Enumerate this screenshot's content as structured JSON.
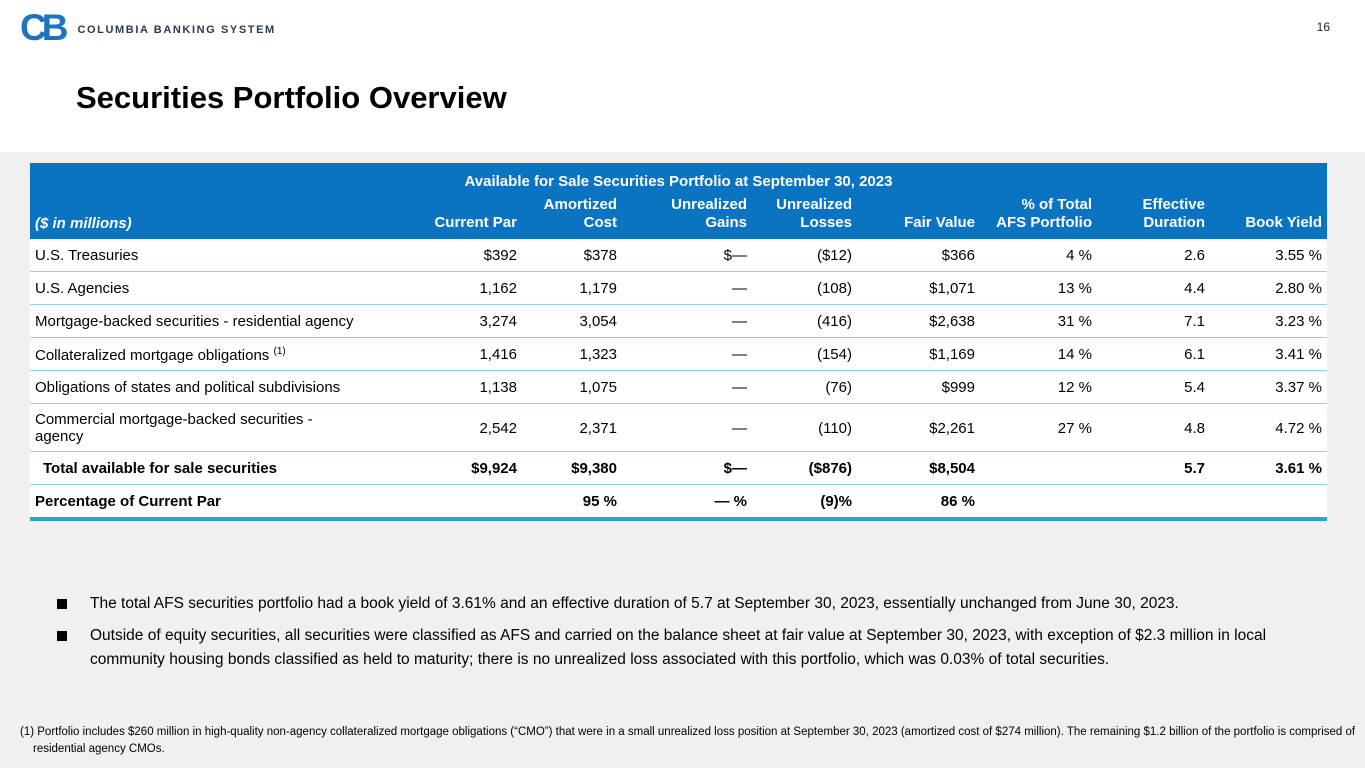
{
  "page": {
    "number": "16"
  },
  "logo": {
    "mark": "CB",
    "wordmark": "COLUMBIA BANKING SYSTEM"
  },
  "title": "Securities Portfolio Overview",
  "table": {
    "caption": "Available for Sale Securities Portfolio at September 30, 2023",
    "units_note": "($ in millions)",
    "columns": [
      "Current Par",
      "Amortized\nCost",
      "Unrealized\nGains",
      "Unrealized\nLosses",
      "Fair Value",
      "% of Total\nAFS Portfolio",
      "Effective\nDuration",
      "Book Yield"
    ],
    "rows": [
      {
        "label": "U.S. Treasuries",
        "cells": [
          "$392",
          "$378",
          "$—",
          "($12)",
          "$366",
          "4 %",
          "2.6",
          "3.55 %"
        ]
      },
      {
        "label": "U.S. Agencies",
        "cells": [
          "1,162",
          "1,179",
          "—",
          "(108)",
          "$1,071",
          "13 %",
          "4.4",
          "2.80 %"
        ]
      },
      {
        "label": "Mortgage-backed securities - residential agency",
        "cells": [
          "3,274",
          "3,054",
          "—",
          "(416)",
          "$2,638",
          "31 %",
          "7.1",
          "3.23 %"
        ]
      },
      {
        "label": "Collateralized mortgage obligations",
        "sup": "(1)",
        "cells": [
          "1,416",
          "1,323",
          "—",
          "(154)",
          "$1,169",
          "14 %",
          "6.1",
          "3.41 %"
        ]
      },
      {
        "label": "Obligations of states and political subdivisions",
        "cells": [
          "1,138",
          "1,075",
          "—",
          "(76)",
          "$999",
          "12 %",
          "5.4",
          "3.37 %"
        ]
      },
      {
        "label": "Commercial mortgage-backed securities - agency",
        "cells": [
          "2,542",
          "2,371",
          "—",
          "(110)",
          "$2,261",
          "27 %",
          "4.8",
          "4.72 %"
        ]
      },
      {
        "label": "Total available for sale securities",
        "bold": true,
        "indent": true,
        "cells": [
          "$9,924",
          "$9,380",
          "$—",
          "($876)",
          "$8,504",
          "",
          "5.7",
          "3.61 %"
        ]
      },
      {
        "label": "Percentage of Current Par",
        "bold": true,
        "cells": [
          "",
          "95 %",
          "— %",
          "(9)%",
          "86 %",
          "",
          "",
          ""
        ]
      }
    ]
  },
  "bullets": [
    "The total AFS securities portfolio had a book yield of 3.61% and an effective duration of 5.7 at September 30, 2023, essentially unchanged from June 30, 2023.",
    "Outside of equity securities, all securities were classified as AFS and carried on the balance sheet at fair value at September 30, 2023, with exception of $2.3 million in local community housing bonds classified as held to maturity; there is no unrealized loss associated with this portfolio, which was 0.03% of total securities."
  ],
  "footnote": "(1) Portfolio includes $260 million in high-quality non-agency collateralized mortgage obligations (“CMO”) that were in a small unrealized loss position at September 30, 2023 (amortized cost of $274 million). The remaining $1.2 billion of the portfolio is comprised of residential agency CMOs.",
  "colors": {
    "header_blue": "#0b74c2",
    "logo_blue": "#1b74bc",
    "thin_rule_cyan": "#8fd3e3",
    "thick_rule_teal": "#2aa7c7",
    "panel_gray": "#f0f0f0"
  }
}
